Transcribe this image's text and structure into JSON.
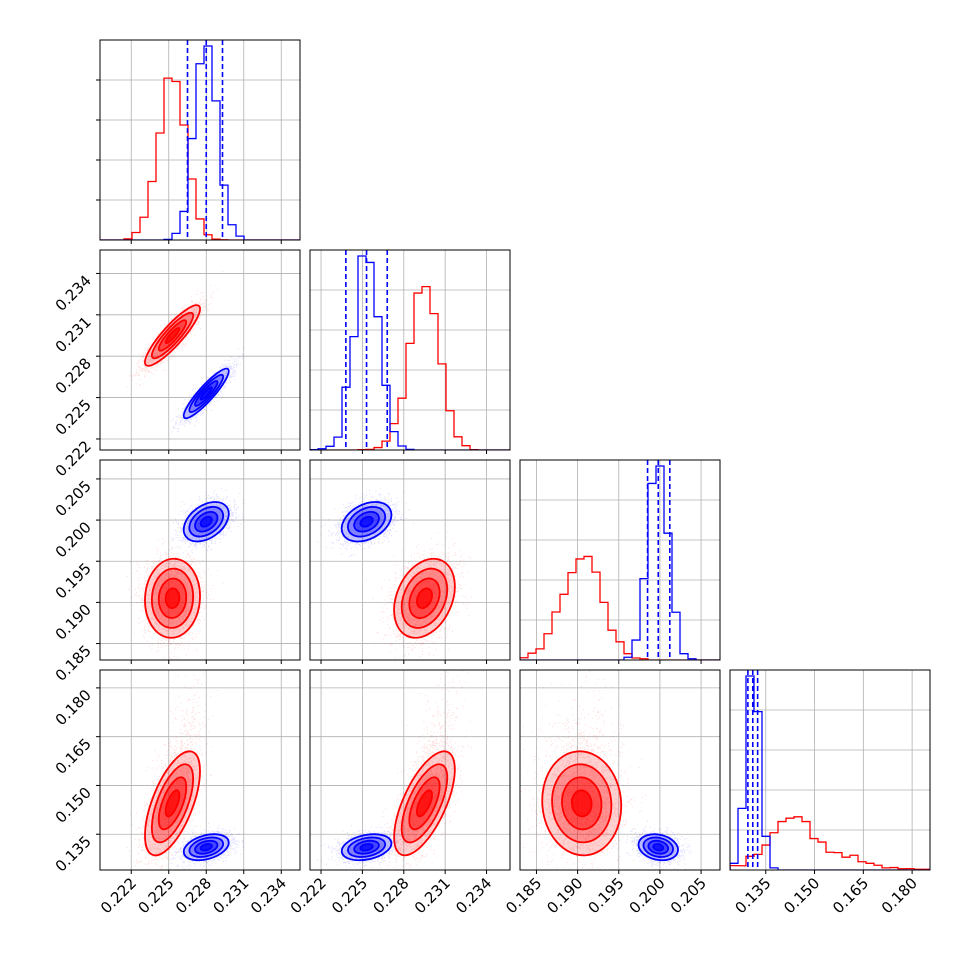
{
  "chart_data": {
    "type": "corner",
    "n_params": 4,
    "colors": {
      "red_series": "#ff0000",
      "blue_series": "#0000ff",
      "grid": "#b0b0b0",
      "frame": "#000000"
    },
    "grid": true,
    "axes": [
      {
        "index": 0,
        "range": [
          0.2195,
          0.2355
        ],
        "ticks": [
          0.222,
          0.225,
          0.228,
          0.231,
          0.234
        ],
        "tick_labels": [
          "0.222",
          "0.225",
          "0.228",
          "0.231",
          "0.234"
        ]
      },
      {
        "index": 1,
        "range": [
          0.2212,
          0.2357
        ],
        "ticks": [
          0.222,
          0.225,
          0.228,
          0.231,
          0.234
        ],
        "tick_labels": [
          "0.222",
          "0.225",
          "0.228",
          "0.231",
          "0.234"
        ]
      },
      {
        "index": 2,
        "range": [
          0.183,
          0.2073
        ],
        "ticks": [
          0.185,
          0.19,
          0.195,
          0.2,
          0.205
        ],
        "tick_labels": [
          "0.185",
          "0.190",
          "0.195",
          "0.200",
          "0.205"
        ]
      },
      {
        "index": 3,
        "range": [
          0.124,
          0.1855
        ],
        "ticks": [
          0.135,
          0.15,
          0.165,
          0.18
        ],
        "tick_labels": [
          "0.135",
          "0.150",
          "0.165",
          "0.180"
        ]
      }
    ],
    "series": [
      {
        "color": "#ff0000",
        "mean": [
          0.2253,
          0.2295,
          0.1905,
          0.1445
        ],
        "sd": [
          0.0011,
          0.0011,
          0.0024,
          0.008
        ],
        "corr": [
          [
            0,
            1,
            0.88
          ],
          [
            0,
            2,
            0.05
          ],
          [
            0,
            3,
            0.62
          ],
          [
            1,
            2,
            0.3
          ],
          [
            1,
            3,
            0.65
          ],
          [
            2,
            3,
            -0.05
          ]
        ]
      },
      {
        "color": "#0000ff",
        "mean": [
          0.228,
          0.2253,
          0.1998,
          0.131
        ],
        "sd": [
          0.0009,
          0.0009,
          0.0012,
          0.002
        ],
        "corr": [
          [
            0,
            1,
            0.9
          ],
          [
            0,
            2,
            0.4
          ],
          [
            0,
            3,
            0.35
          ],
          [
            1,
            2,
            0.35
          ],
          [
            1,
            3,
            0.3
          ],
          [
            2,
            3,
            -0.2
          ]
        ],
        "quantile_lines": [
          [
            0.2265,
            0.228,
            0.2293
          ],
          [
            0.2238,
            0.2253,
            0.2268
          ],
          [
            0.1985,
            0.1998,
            0.2012
          ],
          [
            0.1295,
            0.131,
            0.1325
          ]
        ]
      }
    ]
  }
}
